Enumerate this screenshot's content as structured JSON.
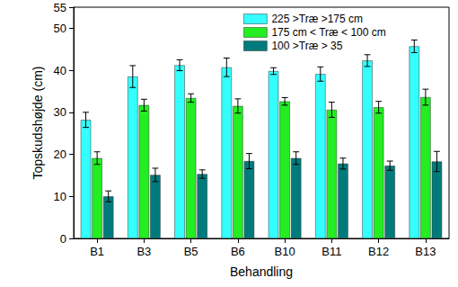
{
  "chart_data": {
    "type": "bar",
    "x_label": "Behandling",
    "y_label": "Topskudshøjde (cm)",
    "categories": [
      "B1",
      "B3",
      "B5",
      "B6",
      "B10",
      "B11",
      "B12",
      "B13"
    ],
    "series": [
      {
        "name": "225 >Træ >175 cm",
        "color": "#33ffff",
        "values": [
          28.2,
          38.5,
          41.2,
          40.7,
          39.8,
          39.1,
          42.3,
          45.7
        ],
        "errors": [
          1.8,
          2.6,
          1.3,
          2.2,
          0.8,
          1.7,
          1.4,
          1.5
        ]
      },
      {
        "name": "175 cm < Træ < 100 cm",
        "color": "#22ee22",
        "values": [
          19.1,
          31.7,
          33.4,
          31.5,
          32.6,
          30.6,
          31.2,
          33.6
        ],
        "errors": [
          1.5,
          1.4,
          1.0,
          1.7,
          0.9,
          1.8,
          1.4,
          1.9
        ]
      },
      {
        "name": "100 >Træ > 35",
        "color": "#007b7b",
        "values": [
          10.0,
          15.1,
          15.3,
          18.4,
          19.1,
          17.8,
          17.3,
          18.3
        ],
        "errors": [
          1.3,
          1.6,
          1.0,
          1.8,
          1.5,
          1.3,
          1.1,
          2.4
        ]
      }
    ],
    "ylim": [
      0,
      55
    ],
    "yticks": [
      0,
      10,
      20,
      30,
      40,
      50
    ],
    "legend": "upper right",
    "grid": false
  }
}
